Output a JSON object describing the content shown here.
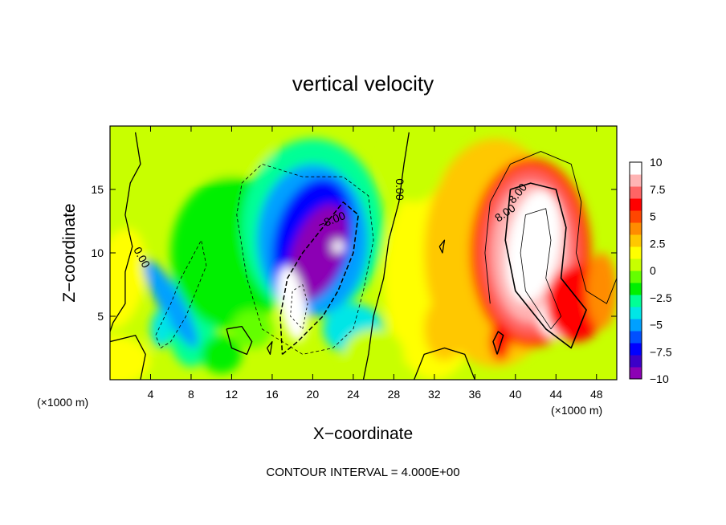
{
  "chart_data": {
    "type": "heatmap",
    "title": "vertical velocity",
    "xlabel": "X−coordinate",
    "ylabel": "Z−coordinate",
    "x_unit": "(×1000 m)",
    "z_unit": "(×1000 m)",
    "xlim": [
      0,
      50
    ],
    "ylim": [
      0,
      20
    ],
    "x_ticks": [
      4,
      8,
      12,
      16,
      20,
      24,
      28,
      32,
      36,
      40,
      44,
      48
    ],
    "y_ticks": [
      5,
      10,
      15
    ],
    "colorbar": {
      "min": -10,
      "max": 10,
      "tick_values": [
        10,
        7.5,
        5,
        2.5,
        0,
        -2.5,
        -5,
        -7.5,
        -10
      ],
      "tick_labels": [
        "10",
        "7.5",
        "5",
        "2.5",
        "0",
        "−2.5",
        "−5",
        "−7.5",
        "−10"
      ],
      "colors": [
        "#8c00b4",
        "#3c00c8",
        "#0000ff",
        "#0050ff",
        "#00a0ff",
        "#00e6e6",
        "#00ff96",
        "#00f000",
        "#64ff00",
        "#c8ff00",
        "#ffff00",
        "#ffc800",
        "#ff8c00",
        "#ff4600",
        "#ff0000",
        "#ff6464",
        "#ffb4b4",
        "#ffffff"
      ]
    },
    "contour_labels": [
      {
        "text": "0.00",
        "x": 2.8,
        "y": 9.5,
        "angle": 62
      },
      {
        "text": "−8.00",
        "x": 22.0,
        "y": 12.3,
        "angle": -22
      },
      {
        "text": "0.00",
        "x": 28.2,
        "y": 15.0,
        "angle": 90
      },
      {
        "text": "8.00",
        "x": 40.5,
        "y": 14.5,
        "angle": -50
      },
      {
        "text": "8.00",
        "x": 39.2,
        "y": 12.9,
        "angle": -35
      }
    ],
    "footer": "CONTOUR INTERVAL = 4.000E+00"
  }
}
